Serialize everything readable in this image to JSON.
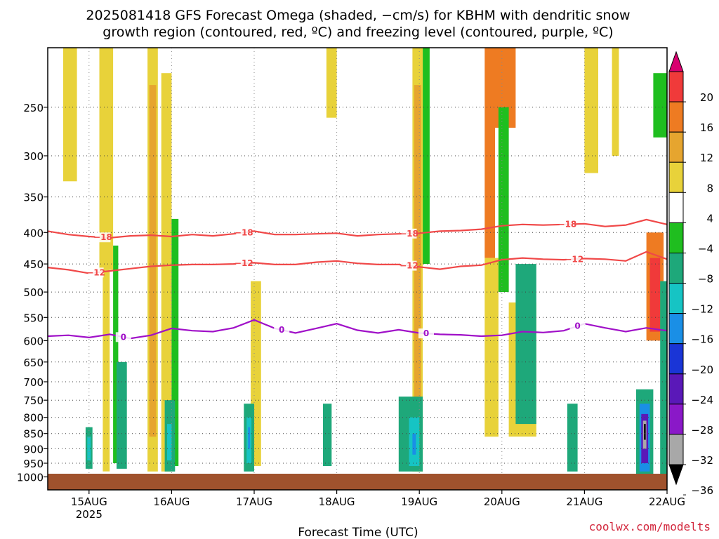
{
  "chart_data": {
    "type": "heatmap",
    "title_line1": "2025081418 GFS Forecast Omega (shaded, −cm/s) for KBHM with dendritic snow",
    "title_line2": "growth region (contoured, red, ºC) and freezing level (contoured, purple, ºC)",
    "xlabel": "Forecast Time (UTC)",
    "ylabel": "",
    "credit": "coolwx.com/modelts",
    "y_scale": "log-pressure (reversed)",
    "ylim_hpa": [
      1050,
      200
    ],
    "y_ticks": [
      250,
      300,
      350,
      400,
      450,
      500,
      550,
      600,
      650,
      700,
      750,
      800,
      850,
      900,
      950,
      1000
    ],
    "x_range_hours": [
      -6,
      174
    ],
    "x_ticks": [
      {
        "label": "15AUG",
        "sub": "2025",
        "hour": 6
      },
      {
        "label": "16AUG",
        "sub": "",
        "hour": 30
      },
      {
        "label": "17AUG",
        "sub": "",
        "hour": 54
      },
      {
        "label": "18AUG",
        "sub": "",
        "hour": 78
      },
      {
        "label": "19AUG",
        "sub": "",
        "hour": 102
      },
      {
        "label": "20AUG",
        "sub": "",
        "hour": 126
      },
      {
        "label": "21AUG",
        "sub": "",
        "hour": 150
      },
      {
        "label": "22AUG",
        "sub": "",
        "hour": 174
      }
    ],
    "grid": true,
    "colorbar": {
      "labels": [
        "20",
        "16",
        "12",
        "8",
        "4",
        "−4",
        "−8",
        "−12",
        "−16",
        "−20",
        "−24",
        "−28",
        "−32",
        "−36"
      ],
      "colors": [
        "#d80070",
        "#f03a3a",
        "#ee7b22",
        "#e6a52f",
        "#e8d23a",
        "#ffffff",
        "#1fbe1f",
        "#1ea87a",
        "#16c4c4",
        "#1a8fe6",
        "#1a35d6",
        "#5a18b8",
        "#8a18c8",
        "#a8a8a8",
        "#000000"
      ]
    },
    "contours": [
      {
        "name": "−18",
        "color": "#f04848",
        "labels_at_hour": [
          10,
          51,
          99,
          145
        ],
        "points": [
          [
            -6,
            398
          ],
          [
            0,
            403
          ],
          [
            6,
            406
          ],
          [
            12,
            408
          ],
          [
            18,
            405
          ],
          [
            24,
            404
          ],
          [
            30,
            406
          ],
          [
            36,
            403
          ],
          [
            42,
            405
          ],
          [
            48,
            402
          ],
          [
            54,
            398
          ],
          [
            60,
            403
          ],
          [
            66,
            403
          ],
          [
            72,
            402
          ],
          [
            78,
            401
          ],
          [
            84,
            405
          ],
          [
            90,
            403
          ],
          [
            96,
            402
          ],
          [
            102,
            401
          ],
          [
            108,
            398
          ],
          [
            114,
            397
          ],
          [
            120,
            395
          ],
          [
            126,
            390
          ],
          [
            132,
            388
          ],
          [
            138,
            389
          ],
          [
            144,
            388
          ],
          [
            150,
            387
          ],
          [
            156,
            391
          ],
          [
            162,
            389
          ],
          [
            168,
            381
          ],
          [
            174,
            388
          ]
        ]
      },
      {
        "name": "−12",
        "color": "#f04848",
        "labels_at_hour": [
          8,
          51,
          99,
          147
        ],
        "points": [
          [
            -6,
            456
          ],
          [
            0,
            460
          ],
          [
            6,
            466
          ],
          [
            12,
            462
          ],
          [
            18,
            458
          ],
          [
            24,
            454
          ],
          [
            30,
            452
          ],
          [
            36,
            451
          ],
          [
            42,
            451
          ],
          [
            48,
            450
          ],
          [
            54,
            448
          ],
          [
            60,
            451
          ],
          [
            66,
            451
          ],
          [
            72,
            447
          ],
          [
            78,
            445
          ],
          [
            84,
            449
          ],
          [
            90,
            451
          ],
          [
            96,
            451
          ],
          [
            102,
            455
          ],
          [
            108,
            459
          ],
          [
            114,
            454
          ],
          [
            120,
            452
          ],
          [
            126,
            443
          ],
          [
            132,
            440
          ],
          [
            138,
            442
          ],
          [
            144,
            443
          ],
          [
            150,
            441
          ],
          [
            156,
            442
          ],
          [
            162,
            445
          ],
          [
            168,
            430
          ],
          [
            174,
            442
          ]
        ]
      },
      {
        "name": "0",
        "color": "#a010c8",
        "labels_at_hour": [
          16,
          62,
          104,
          148
        ],
        "points": [
          [
            -6,
            590
          ],
          [
            0,
            588
          ],
          [
            6,
            593
          ],
          [
            12,
            586
          ],
          [
            18,
            595
          ],
          [
            24,
            588
          ],
          [
            30,
            573
          ],
          [
            36,
            578
          ],
          [
            42,
            580
          ],
          [
            48,
            572
          ],
          [
            54,
            555
          ],
          [
            60,
            573
          ],
          [
            66,
            583
          ],
          [
            72,
            573
          ],
          [
            78,
            563
          ],
          [
            84,
            577
          ],
          [
            90,
            583
          ],
          [
            96,
            576
          ],
          [
            102,
            583
          ],
          [
            108,
            586
          ],
          [
            114,
            587
          ],
          [
            120,
            590
          ],
          [
            126,
            588
          ],
          [
            132,
            580
          ],
          [
            138,
            582
          ],
          [
            144,
            578
          ],
          [
            150,
            563
          ],
          [
            156,
            572
          ],
          [
            162,
            580
          ],
          [
            168,
            572
          ],
          [
            174,
            578
          ]
        ]
      }
    ],
    "omega_cells": [
      {
        "t0": -1.5,
        "t1": 2.5,
        "p0": 200,
        "p1": 330,
        "v": 4
      },
      {
        "t0": 9,
        "t1": 13,
        "p0": 200,
        "p1": 460,
        "v": 4
      },
      {
        "t0": 10,
        "t1": 12,
        "p0": 460,
        "p1": 980,
        "v": 4
      },
      {
        "t0": 13,
        "t1": 14.5,
        "p0": 420,
        "p1": 950,
        "v": -4
      },
      {
        "t0": 23,
        "t1": 26,
        "p0": 200,
        "p1": 980,
        "v": 4
      },
      {
        "t0": 23.5,
        "t1": 25.5,
        "p0": 230,
        "p1": 860,
        "v": 8
      },
      {
        "t0": 27,
        "t1": 30,
        "p0": 220,
        "p1": 980,
        "v": 4
      },
      {
        "t0": 30,
        "t1": 32,
        "p0": 380,
        "p1": 960,
        "v": -4
      },
      {
        "t0": 53,
        "t1": 56,
        "p0": 480,
        "p1": 960,
        "v": 4
      },
      {
        "t0": 75,
        "t1": 78,
        "p0": 200,
        "p1": 260,
        "v": 4
      },
      {
        "t0": 100,
        "t1": 103,
        "p0": 200,
        "p1": 980,
        "v": 4
      },
      {
        "t0": 100.5,
        "t1": 102.5,
        "p0": 230,
        "p1": 900,
        "v": 8
      },
      {
        "t0": 103,
        "t1": 105,
        "p0": 200,
        "p1": 450,
        "v": -4
      },
      {
        "t0": 121,
        "t1": 124,
        "p0": 200,
        "p1": 440,
        "v": 12
      },
      {
        "t0": 124,
        "t1": 130,
        "p0": 200,
        "p1": 270,
        "v": 12
      },
      {
        "t0": 121,
        "t1": 125,
        "p0": 440,
        "p1": 860,
        "v": 4
      },
      {
        "t0": 125,
        "t1": 128,
        "p0": 250,
        "p1": 500,
        "v": -4
      },
      {
        "t0": 128,
        "t1": 136,
        "p0": 520,
        "p1": 860,
        "v": 4
      },
      {
        "t0": 130,
        "t1": 136,
        "p0": 450,
        "p1": 820,
        "v": -8
      },
      {
        "t0": 150,
        "t1": 154,
        "p0": 200,
        "p1": 320,
        "v": 4
      },
      {
        "t0": 158,
        "t1": 160,
        "p0": 200,
        "p1": 300,
        "v": 4
      },
      {
        "t0": 168,
        "t1": 173,
        "p0": 400,
        "p1": 600,
        "v": 12
      },
      {
        "t0": 169,
        "t1": 172,
        "p0": 440,
        "p1": 580,
        "v": 16
      },
      {
        "t0": 172,
        "t1": 174,
        "p0": 480,
        "p1": 990,
        "v": -8
      },
      {
        "t0": 170,
        "t1": 174,
        "p0": 220,
        "p1": 280,
        "v": -4
      },
      {
        "t0": 5,
        "t1": 7,
        "p0": 830,
        "p1": 970,
        "v": -8
      },
      {
        "t0": 5.5,
        "t1": 6.5,
        "p0": 860,
        "p1": 940,
        "v": -12
      },
      {
        "t0": 14,
        "t1": 17,
        "p0": 650,
        "p1": 970,
        "v": -8
      },
      {
        "t0": 28,
        "t1": 31,
        "p0": 750,
        "p1": 980,
        "v": -8
      },
      {
        "t0": 28.7,
        "t1": 30,
        "p0": 820,
        "p1": 940,
        "v": -12
      },
      {
        "t0": 51,
        "t1": 54,
        "p0": 760,
        "p1": 980,
        "v": -8
      },
      {
        "t0": 51.8,
        "t1": 53.2,
        "p0": 800,
        "p1": 950,
        "v": -12
      },
      {
        "t0": 52.2,
        "t1": 52.8,
        "p0": 830,
        "p1": 900,
        "v": -16
      },
      {
        "t0": 74,
        "t1": 76.5,
        "p0": 760,
        "p1": 960,
        "v": -8
      },
      {
        "t0": 96,
        "t1": 103,
        "p0": 740,
        "p1": 980,
        "v": -8
      },
      {
        "t0": 99,
        "t1": 102,
        "p0": 800,
        "p1": 960,
        "v": -12
      },
      {
        "t0": 100,
        "t1": 101,
        "p0": 850,
        "p1": 920,
        "v": -16
      },
      {
        "t0": 145,
        "t1": 148,
        "p0": 760,
        "p1": 980,
        "v": -8
      },
      {
        "t0": 165,
        "t1": 170,
        "p0": 720,
        "p1": 990,
        "v": -8
      },
      {
        "t0": 166,
        "t1": 169,
        "p0": 760,
        "p1": 980,
        "v": -16
      },
      {
        "t0": 166.5,
        "t1": 168.5,
        "p0": 790,
        "p1": 950,
        "v": -24
      },
      {
        "t0": 167,
        "t1": 168,
        "p0": 810,
        "p1": 900,
        "v": -32
      },
      {
        "t0": 167.3,
        "t1": 167.8,
        "p0": 820,
        "p1": 870,
        "v": -40
      }
    ]
  }
}
